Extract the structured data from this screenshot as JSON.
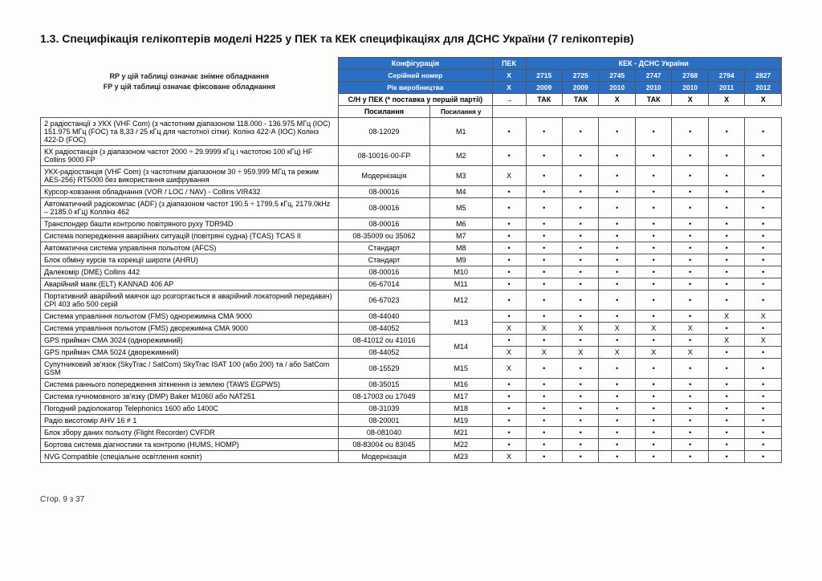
{
  "title": "1.3. Специфікація гелікоптерів моделі Н225 у ПЕК та КЕК специфікаціях для ДСНС України (7 гелікоптерів)",
  "legend": {
    "rp": "RP у цій таблиці означає знімне обладнання",
    "fp": "FP у цій таблиці означає фіксоване обладнання"
  },
  "headers": {
    "config": "Конфігурація",
    "pek": "ПЕК",
    "kek": "КЕК - ДСНС України",
    "serial": "Серійний номер",
    "year": "Рік виробництва",
    "sn_pek": "С/Н у ПЕК (* поставка у першій партії)",
    "poslannya": "Посилання",
    "poslannya_u": "Посилання у",
    "serials": [
      "2715",
      "2725",
      "2745",
      "2747",
      "2768",
      "2794",
      "2827"
    ],
    "years": [
      "2009",
      "2009",
      "2010",
      "2010",
      "2010",
      "2011",
      "2012"
    ],
    "tak_row": [
      "ТАК",
      "ТАК",
      "X",
      "ТАК",
      "X",
      "X",
      "X"
    ]
  },
  "rows": [
    {
      "desc": "2 радіостанції з УКХ (VHF Com) (з частотним діапазоном 118.000 - 136.975 МГц (IOC) 151.975 МГц (FOC) та 8,33 / 25 кГц для частотної сітки). Колінз 422-А (IOC) Колінз 422-D (FOC)",
      "ref": "08-12029",
      "link": "M1",
      "pek": "•",
      "v": [
        "•",
        "•",
        "•",
        "•",
        "•",
        "•",
        "•"
      ]
    },
    {
      "desc": "КХ радіостанція (з діапазоном частот 2000 ÷ 29.9999 кГц і частотою 100 кГц) HF Collins 9000 FP",
      "ref": "08-10016-00-FP",
      "link": "M2",
      "pek": "•",
      "v": [
        "•",
        "•",
        "•",
        "•",
        "•",
        "•",
        "•"
      ]
    },
    {
      "desc": "УКХ-радіостанція (VHF Com) (з частотним діапазоном 30 ÷ 959.999 МГц та режим AES-256) RT5000 без використання шифрування",
      "ref": "Модернізація",
      "link": "M3",
      "pek": "X",
      "v": [
        "•",
        "•",
        "•",
        "•",
        "•",
        "•",
        "•"
      ]
    },
    {
      "desc": "Курсор-ковзання обладнання (VOR / LOC / NAV) - Collins VIR432",
      "ref": "08-00016",
      "link": "M4",
      "pek": "•",
      "v": [
        "•",
        "•",
        "•",
        "•",
        "•",
        "•",
        "•"
      ]
    },
    {
      "desc": "Автоматичний радіокомпас (ADF) (з діапазоном частот 190.5 ÷ 1799.5 кГц, 2179.0kHz – 2185.0 кГц) Коллінз 462",
      "ref": "08-00016",
      "link": "M5",
      "pek": "•",
      "v": [
        "•",
        "•",
        "•",
        "•",
        "•",
        "•",
        "•"
      ]
    },
    {
      "desc": "Транспондер башти контролю повітряного руху TDR94D",
      "ref": "08-00016",
      "link": "M6",
      "pek": "•",
      "v": [
        "•",
        "•",
        "•",
        "•",
        "•",
        "•",
        "•"
      ]
    },
    {
      "desc": "Система попередження аварійних ситуацій (повітряні судна) (TCAS) TCAS II",
      "ref": "08-35009 ou 35062",
      "link": "M7",
      "pek": "•",
      "v": [
        "•",
        "•",
        "•",
        "•",
        "•",
        "•",
        "•"
      ]
    },
    {
      "desc": "Автоматична система управління польотом (AFCS)",
      "ref": "Стандарт",
      "link": "M8",
      "pek": "•",
      "v": [
        "•",
        "•",
        "•",
        "•",
        "•",
        "•",
        "•"
      ]
    },
    {
      "desc": "Блок обміну курсів та корекції широти (AHRU)",
      "ref": "Стандарт",
      "link": "M9",
      "pek": "•",
      "v": [
        "•",
        "•",
        "•",
        "•",
        "•",
        "•",
        "•"
      ]
    },
    {
      "desc": "Далекомір (DME) Collins 442",
      "ref": "08-00016",
      "link": "M10",
      "pek": "•",
      "v": [
        "•",
        "•",
        "•",
        "•",
        "•",
        "•",
        "•"
      ]
    },
    {
      "desc": "Аварійний маяк (ELT) KANNAD 406 AP",
      "ref": "06-67014",
      "link": "M11",
      "pek": "•",
      "v": [
        "•",
        "•",
        "•",
        "•",
        "•",
        "•",
        "•"
      ]
    },
    {
      "desc": "Портативний аварійний маячок що розгортається в аварійний локаторний передавач) СРІ 403 або 500 серій",
      "ref": "06-67023",
      "link": "M12",
      "pek": "•",
      "v": [
        "•",
        "•",
        "•",
        "•",
        "•",
        "•",
        "•"
      ]
    },
    {
      "desc": "Система управління польотом (FMS) однорежимна СМА 9000",
      "ref": "08-44040",
      "link": "M13",
      "rowspan": 2,
      "pek": "•",
      "v": [
        "•",
        "•",
        "•",
        "•",
        "•",
        "X",
        "X"
      ]
    },
    {
      "desc": "Система управління польотом (FMS) дворежимна СМА 9000",
      "ref": "08-44052",
      "link": "",
      "pek": "X",
      "v": [
        "X",
        "X",
        "X",
        "X",
        "X",
        "•",
        "•"
      ]
    },
    {
      "desc": "GPS приймач СМА 3024 (однорежимний)",
      "ref": "08-41012 ou 41016",
      "link": "M14",
      "rowspan": 2,
      "pek": "•",
      "v": [
        "•",
        "•",
        "•",
        "•",
        "•",
        "X",
        "X"
      ]
    },
    {
      "desc": "GPS приймач СМА 5024 (дворежимний)",
      "ref": "08-44052",
      "link": "",
      "pek": "X",
      "v": [
        "X",
        "X",
        "X",
        "X",
        "X",
        "•",
        "•"
      ]
    },
    {
      "desc": "Супутниковий зв'язок (SkyTrac / SatCom) SkyTrac ISAT 100 (або 200) та / або SatCom GSM",
      "ref": "08-15529",
      "link": "M15",
      "pek": "X",
      "v": [
        "•",
        "•",
        "•",
        "•",
        "•",
        "•",
        "•"
      ]
    },
    {
      "desc": "Система раннього попередження зіткнення із землею (TAWS EGPWS)",
      "ref": "08-35015",
      "link": "M16",
      "pek": "•",
      "v": [
        "•",
        "•",
        "•",
        "•",
        "•",
        "•",
        "•"
      ]
    },
    {
      "desc": "Система гучномовного зв'язку (DMP) Baker M1060 або NAT251",
      "ref": "08-17003 ou 17049",
      "link": "M17",
      "pek": "•",
      "v": [
        "•",
        "•",
        "•",
        "•",
        "•",
        "•",
        "•"
      ]
    },
    {
      "desc": "Погодний радіолокатор Telephonics 1600 або 1400С",
      "ref": "08-31039",
      "link": "M18",
      "pek": "•",
      "v": [
        "•",
        "•",
        "•",
        "•",
        "•",
        "•",
        "•"
      ]
    },
    {
      "desc": "Радіо висотомір AHV 16 # 1",
      "ref": "08-20001",
      "link": "M19",
      "pek": "•",
      "v": [
        "•",
        "•",
        "•",
        "•",
        "•",
        "•",
        "•"
      ]
    },
    {
      "desc": "Блок збору даних польоту (Flight Recorder) CVFDR",
      "ref": "08-081040",
      "link": "M21",
      "pek": "•",
      "v": [
        "•",
        "•",
        "•",
        "•",
        "•",
        "•",
        "•"
      ]
    },
    {
      "desc": "Бортова система діагностики та контролю (HUMS, HOMP)",
      "ref": "08-83004 ou 83045",
      "link": "M22",
      "pek": "•",
      "v": [
        "•",
        "•",
        "•",
        "•",
        "•",
        "•",
        "•"
      ]
    },
    {
      "desc": "NVG Compatible (спеціальне освітлення кокпіт)",
      "ref": "Модернізація",
      "link": "M23",
      "pek": "X",
      "v": [
        "•",
        "•",
        "•",
        "•",
        "•",
        "•",
        "•"
      ]
    }
  ],
  "footer": "Стор. 9 з 37"
}
